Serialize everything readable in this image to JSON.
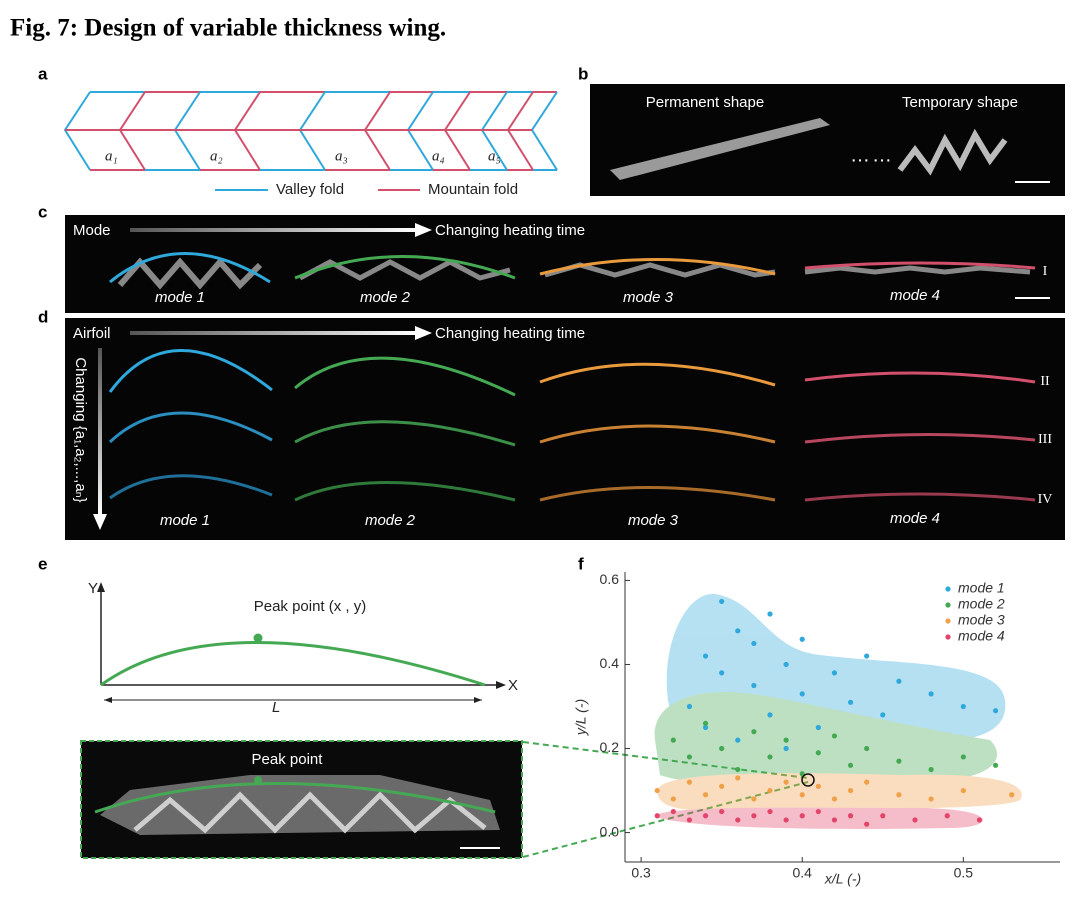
{
  "title": "Fig. 7: Design of variable thickness wing.",
  "panel_a": {
    "label": "a",
    "segment_labels": [
      "a₁",
      "a₂",
      "a₃",
      "a₄",
      "a₅"
    ],
    "legend": [
      "Valley fold",
      "Mountain fold"
    ]
  },
  "panel_b": {
    "label": "b",
    "texts": [
      "Permanent shape",
      "Temporary shape"
    ]
  },
  "panel_c": {
    "label": "c",
    "row_label": "Mode",
    "arrow_label": "Changing heating time",
    "modes": [
      "mode 1",
      "mode 2",
      "mode 3",
      "mode 4"
    ],
    "curve_label": "I"
  },
  "panel_d": {
    "label": "d",
    "row_label": "Airfoil",
    "arrow_label": "Changing heating time",
    "side_label": "Changing {a₁,a₂,...,aₙ}",
    "modes": [
      "mode 1",
      "mode 2",
      "mode 3",
      "mode 4"
    ],
    "curve_labels": [
      "II",
      "III",
      "IV"
    ]
  },
  "panel_e": {
    "label": "e",
    "y_axis": "Y",
    "x_axis": "X",
    "peak_label": "Peak point (x , y)",
    "length": "L",
    "photo_label": "Peak point"
  },
  "chart_data": {
    "type": "scatter",
    "panel_label": "f",
    "xlabel": "x/L (-)",
    "ylabel": "y/L (-)",
    "xlim": [
      0.29,
      0.56
    ],
    "ylim": [
      -0.07,
      0.62
    ],
    "xticks": [
      0.3,
      0.4,
      0.5
    ],
    "yticks": [
      {
        "value": 0,
        "label": "0.0"
      },
      0.2,
      0.4,
      0.6
    ],
    "legend": "upper right",
    "series": [
      {
        "name": "mode 1",
        "color": "#2fa8dc",
        "x": [
          0.33,
          0.34,
          0.35,
          0.35,
          0.36,
          0.37,
          0.37,
          0.38,
          0.38,
          0.39,
          0.4,
          0.4,
          0.41,
          0.42,
          0.43,
          0.44,
          0.45,
          0.46,
          0.48,
          0.5,
          0.52,
          0.36,
          0.39,
          0.34
        ],
        "y": [
          0.3,
          0.42,
          0.55,
          0.38,
          0.48,
          0.35,
          0.45,
          0.28,
          0.52,
          0.4,
          0.33,
          0.46,
          0.25,
          0.38,
          0.31,
          0.42,
          0.28,
          0.36,
          0.33,
          0.3,
          0.29,
          0.22,
          0.2,
          0.25
        ]
      },
      {
        "name": "mode 2",
        "color": "#45a954",
        "x": [
          0.32,
          0.33,
          0.34,
          0.35,
          0.36,
          0.37,
          0.38,
          0.39,
          0.4,
          0.41,
          0.42,
          0.43,
          0.44,
          0.46,
          0.48,
          0.5,
          0.52
        ],
        "y": [
          0.22,
          0.18,
          0.26,
          0.2,
          0.15,
          0.24,
          0.18,
          0.22,
          0.14,
          0.19,
          0.23,
          0.16,
          0.2,
          0.17,
          0.15,
          0.18,
          0.16
        ]
      },
      {
        "name": "mode 3",
        "color": "#f0a048",
        "x": [
          0.31,
          0.32,
          0.33,
          0.34,
          0.35,
          0.36,
          0.37,
          0.38,
          0.39,
          0.4,
          0.41,
          0.42,
          0.43,
          0.44,
          0.46,
          0.48,
          0.5,
          0.53
        ],
        "y": [
          0.1,
          0.08,
          0.12,
          0.09,
          0.11,
          0.13,
          0.08,
          0.1,
          0.12,
          0.09,
          0.11,
          0.08,
          0.1,
          0.12,
          0.09,
          0.08,
          0.1,
          0.09
        ]
      },
      {
        "name": "mode 4",
        "color": "#e3456a",
        "x": [
          0.31,
          0.32,
          0.33,
          0.34,
          0.35,
          0.36,
          0.37,
          0.38,
          0.39,
          0.4,
          0.41,
          0.42,
          0.43,
          0.44,
          0.45,
          0.47,
          0.49,
          0.51
        ],
        "y": [
          0.04,
          0.05,
          0.03,
          0.04,
          0.05,
          0.03,
          0.04,
          0.05,
          0.03,
          0.04,
          0.05,
          0.03,
          0.04,
          0.02,
          0.04,
          0.03,
          0.04,
          0.03
        ]
      }
    ]
  }
}
